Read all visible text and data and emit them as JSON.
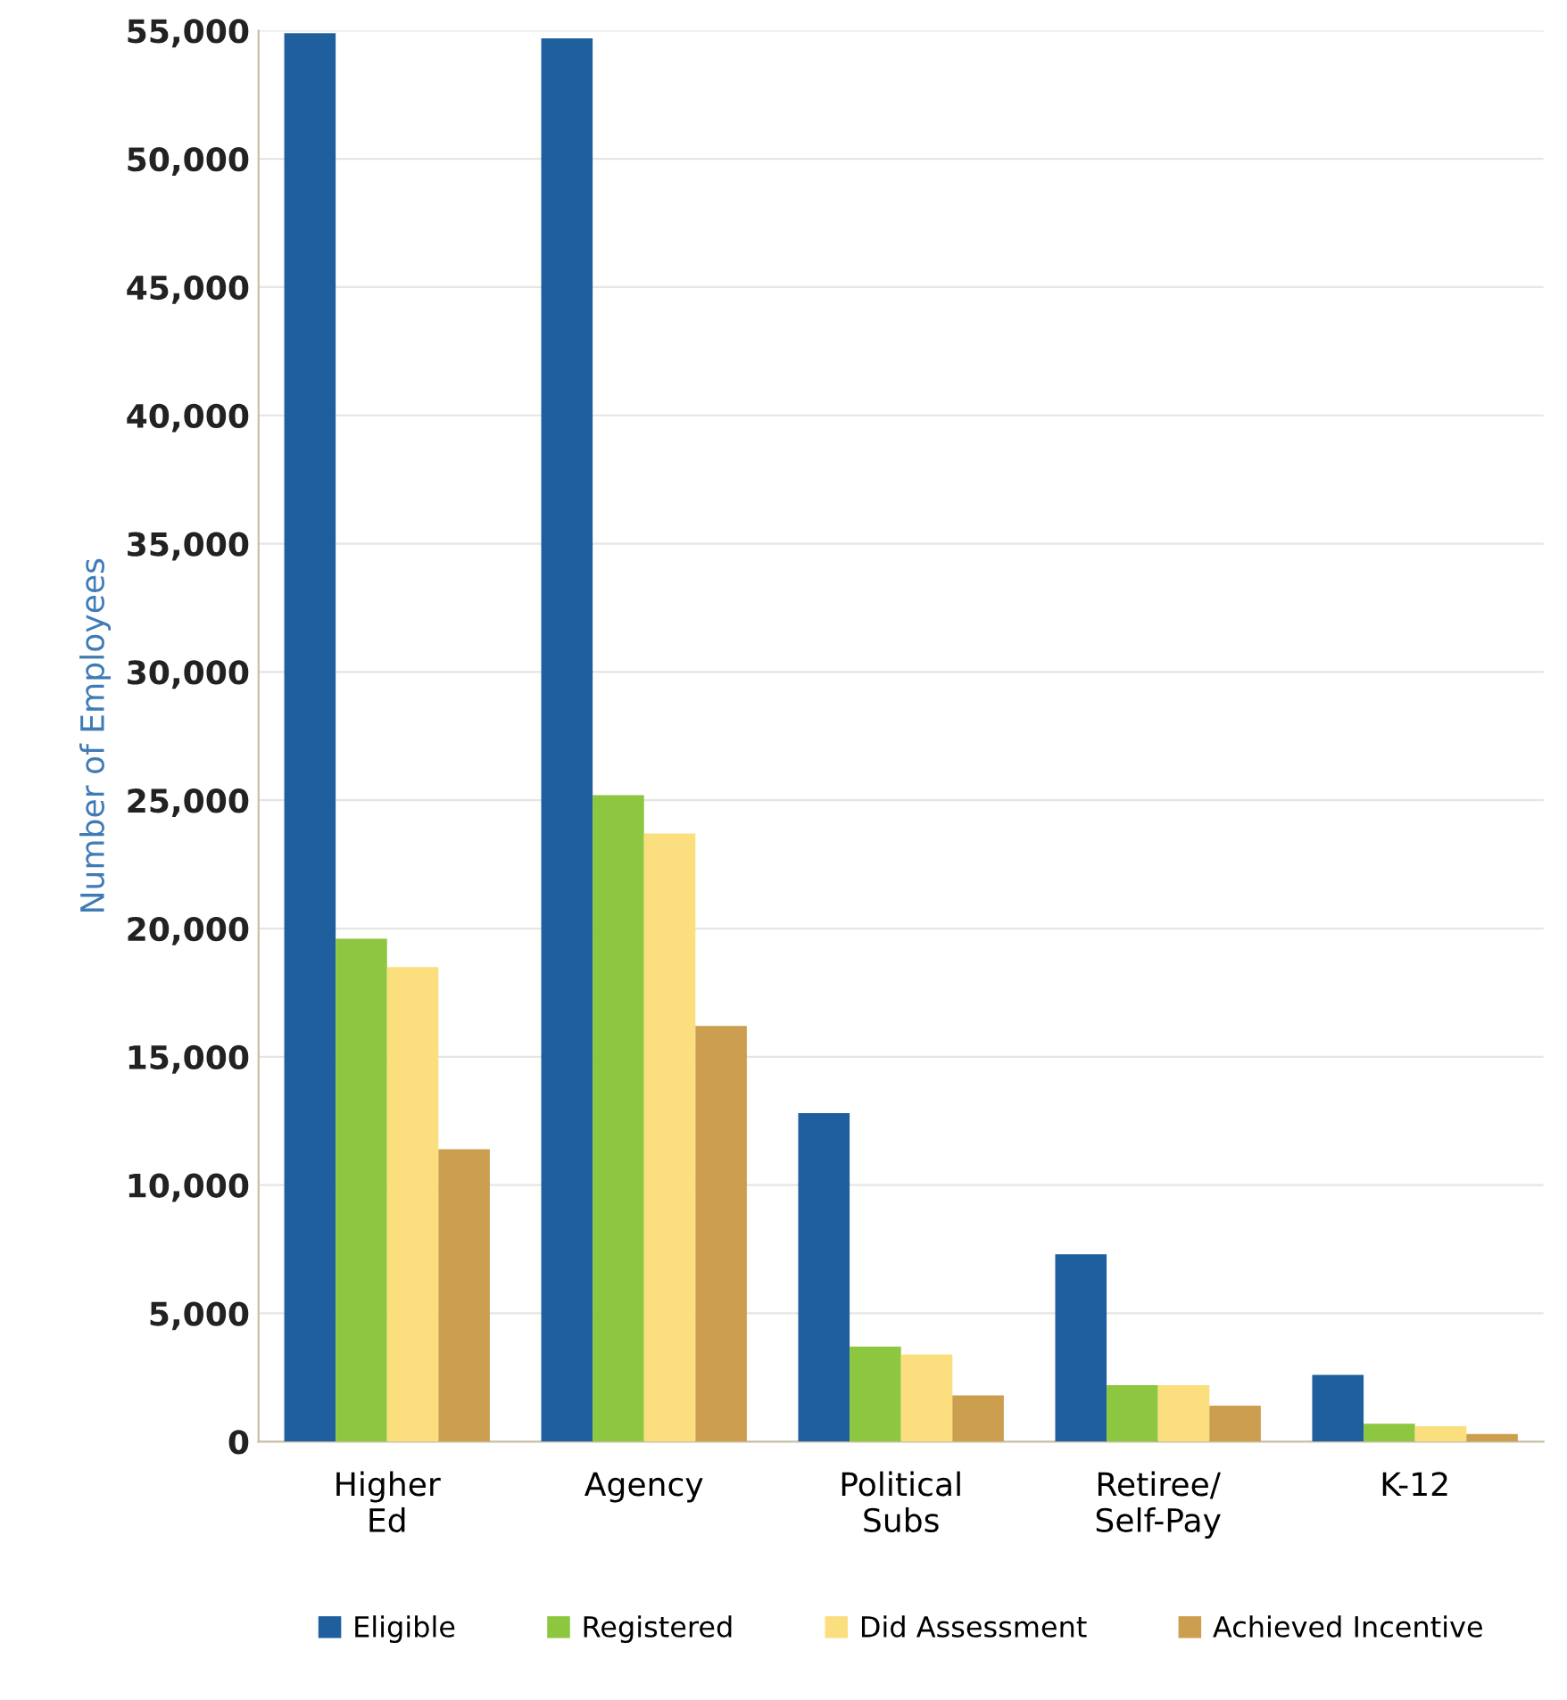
{
  "chart_data": {
    "type": "bar",
    "ylabel": "Number of Employees",
    "categories": [
      "Higher\nEd",
      "Agency",
      "Political\nSubs",
      "Retiree/\nSelf-Pay",
      "K-12"
    ],
    "series": [
      {
        "name": "Eligible",
        "color": "#1f5f9e",
        "values": [
          54900,
          54700,
          12800,
          7300,
          2600
        ]
      },
      {
        "name": "Registered",
        "color": "#8dc63f",
        "values": [
          19600,
          25200,
          3700,
          2200,
          700
        ]
      },
      {
        "name": "Did Assessment",
        "color": "#fbdf7f",
        "values": [
          18500,
          23700,
          3400,
          2200,
          600
        ]
      },
      {
        "name": "Achieved Incentive",
        "color": "#cc9e4f",
        "values": [
          11400,
          16200,
          1800,
          1400,
          300
        ]
      }
    ],
    "ylim": [
      0,
      55000
    ],
    "yticks": [
      {
        "value": 0,
        "label": "0"
      },
      {
        "value": 5000,
        "label": "5,000"
      },
      {
        "value": 10000,
        "label": "10,000"
      },
      {
        "value": 15000,
        "label": "15,000"
      },
      {
        "value": 20000,
        "label": "20,000"
      },
      {
        "value": 25000,
        "label": "25,000"
      },
      {
        "value": 30000,
        "label": "30,000"
      },
      {
        "value": 35000,
        "label": "35,000"
      },
      {
        "value": 40000,
        "label": "40,000"
      },
      {
        "value": 45000,
        "label": "45,000"
      },
      {
        "value": 50000,
        "label": "50,000"
      },
      {
        "value": 55000,
        "label": "55,000"
      }
    ],
    "grid": "y",
    "legend": "bottom"
  }
}
